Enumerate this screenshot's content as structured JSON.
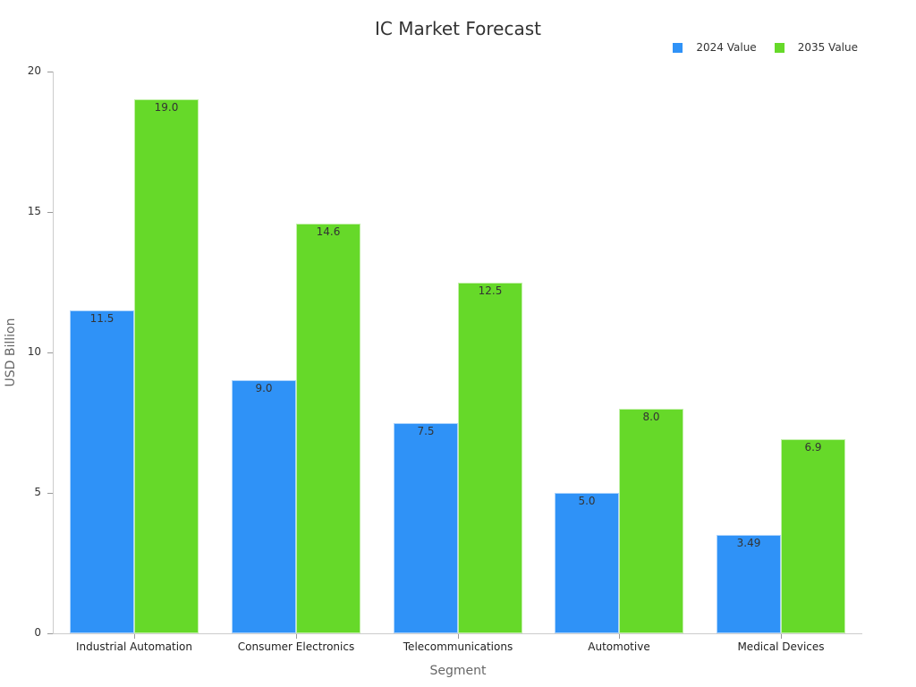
{
  "chart_data": {
    "type": "bar",
    "title": "IC Market Forecast",
    "xlabel": "Segment",
    "ylabel": "USD Billion",
    "ylim": [
      0,
      20
    ],
    "yticks": [
      0,
      5,
      10,
      15,
      20
    ],
    "grid": false,
    "legend_position": "top-right",
    "categories": [
      "Industrial Automation",
      "Consumer Electronics",
      "Telecommunications",
      "Automotive",
      "Medical Devices"
    ],
    "series": [
      {
        "name": "2024 Value",
        "color": "#2f92f7",
        "values": [
          11.5,
          9.0,
          7.5,
          5.0,
          3.49
        ],
        "labels": [
          "11.5",
          "9.0",
          "7.5",
          "5.0",
          "3.49"
        ]
      },
      {
        "name": "2035 Value",
        "color": "#66d929",
        "values": [
          19.0,
          14.6,
          12.5,
          8.0,
          6.9
        ],
        "labels": [
          "19.0",
          "14.6",
          "12.5",
          "8.0",
          "6.9"
        ]
      }
    ]
  }
}
